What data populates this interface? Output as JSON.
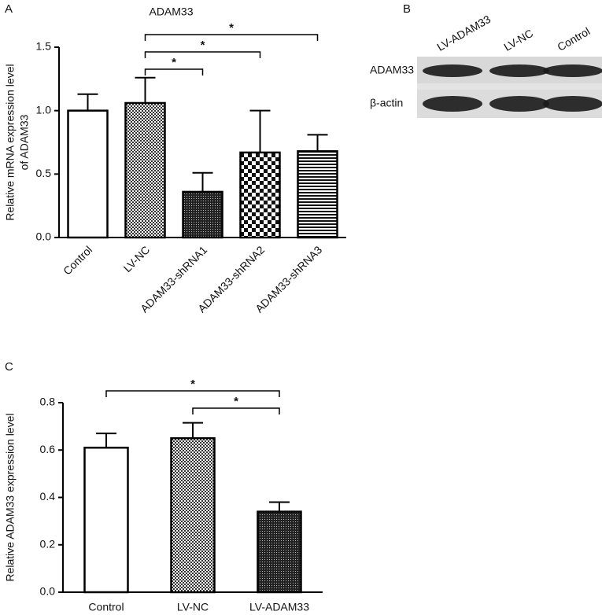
{
  "chart_data": [
    {
      "type": "bar",
      "panel": "A",
      "title": "ADAM33",
      "y_label": [
        "Relative mRNA expression level",
        "of ADAM33"
      ],
      "categories": [
        "Control",
        "LV-NC",
        "ADAM33-shRNA1",
        "ADAM33-shRNA2",
        "ADAM33-shRNA3"
      ],
      "values": [
        1.0,
        1.06,
        0.36,
        0.67,
        0.68
      ],
      "errors": [
        0.13,
        0.2,
        0.15,
        0.33,
        0.13
      ],
      "patterns": [
        "none",
        "fine-check",
        "dense-dots",
        "checker",
        "h-stripes"
      ],
      "ylim": [
        0,
        1.5
      ],
      "yticks": [
        {
          "value": 0,
          "label": "0.0"
        },
        0.5,
        {
          "value": 1,
          "label": "1.0"
        },
        1.5
      ],
      "annotations": [
        {
          "from": 1,
          "to": 4,
          "label": "*"
        },
        {
          "from": 1,
          "to": 3,
          "label": "*"
        },
        {
          "from": 1,
          "to": 2,
          "label": "*"
        }
      ]
    },
    {
      "type": "bar",
      "panel": "C",
      "y_label": [
        "Relative ADAM33 expression level"
      ],
      "categories": [
        "Control",
        "LV-NC",
        "LV-ADAM33"
      ],
      "values": [
        0.61,
        0.65,
        0.34
      ],
      "errors": [
        0.06,
        0.065,
        0.04
      ],
      "patterns": [
        "none",
        "fine-check",
        "dense-dots"
      ],
      "ylim": [
        0,
        0.8
      ],
      "yticks": [
        {
          "value": 0,
          "label": "0.0"
        },
        0.2,
        0.4,
        0.6,
        0.8
      ],
      "annotations": [
        {
          "from": 0,
          "to": 2,
          "label": "*"
        },
        {
          "from": 1,
          "to": 2,
          "label": "*"
        }
      ]
    }
  ],
  "blot": {
    "panel": "B",
    "lanes": [
      "LV-ADAM33",
      "LV-NC",
      "Control"
    ],
    "rows": [
      "ADAM33",
      "β-actin"
    ]
  }
}
